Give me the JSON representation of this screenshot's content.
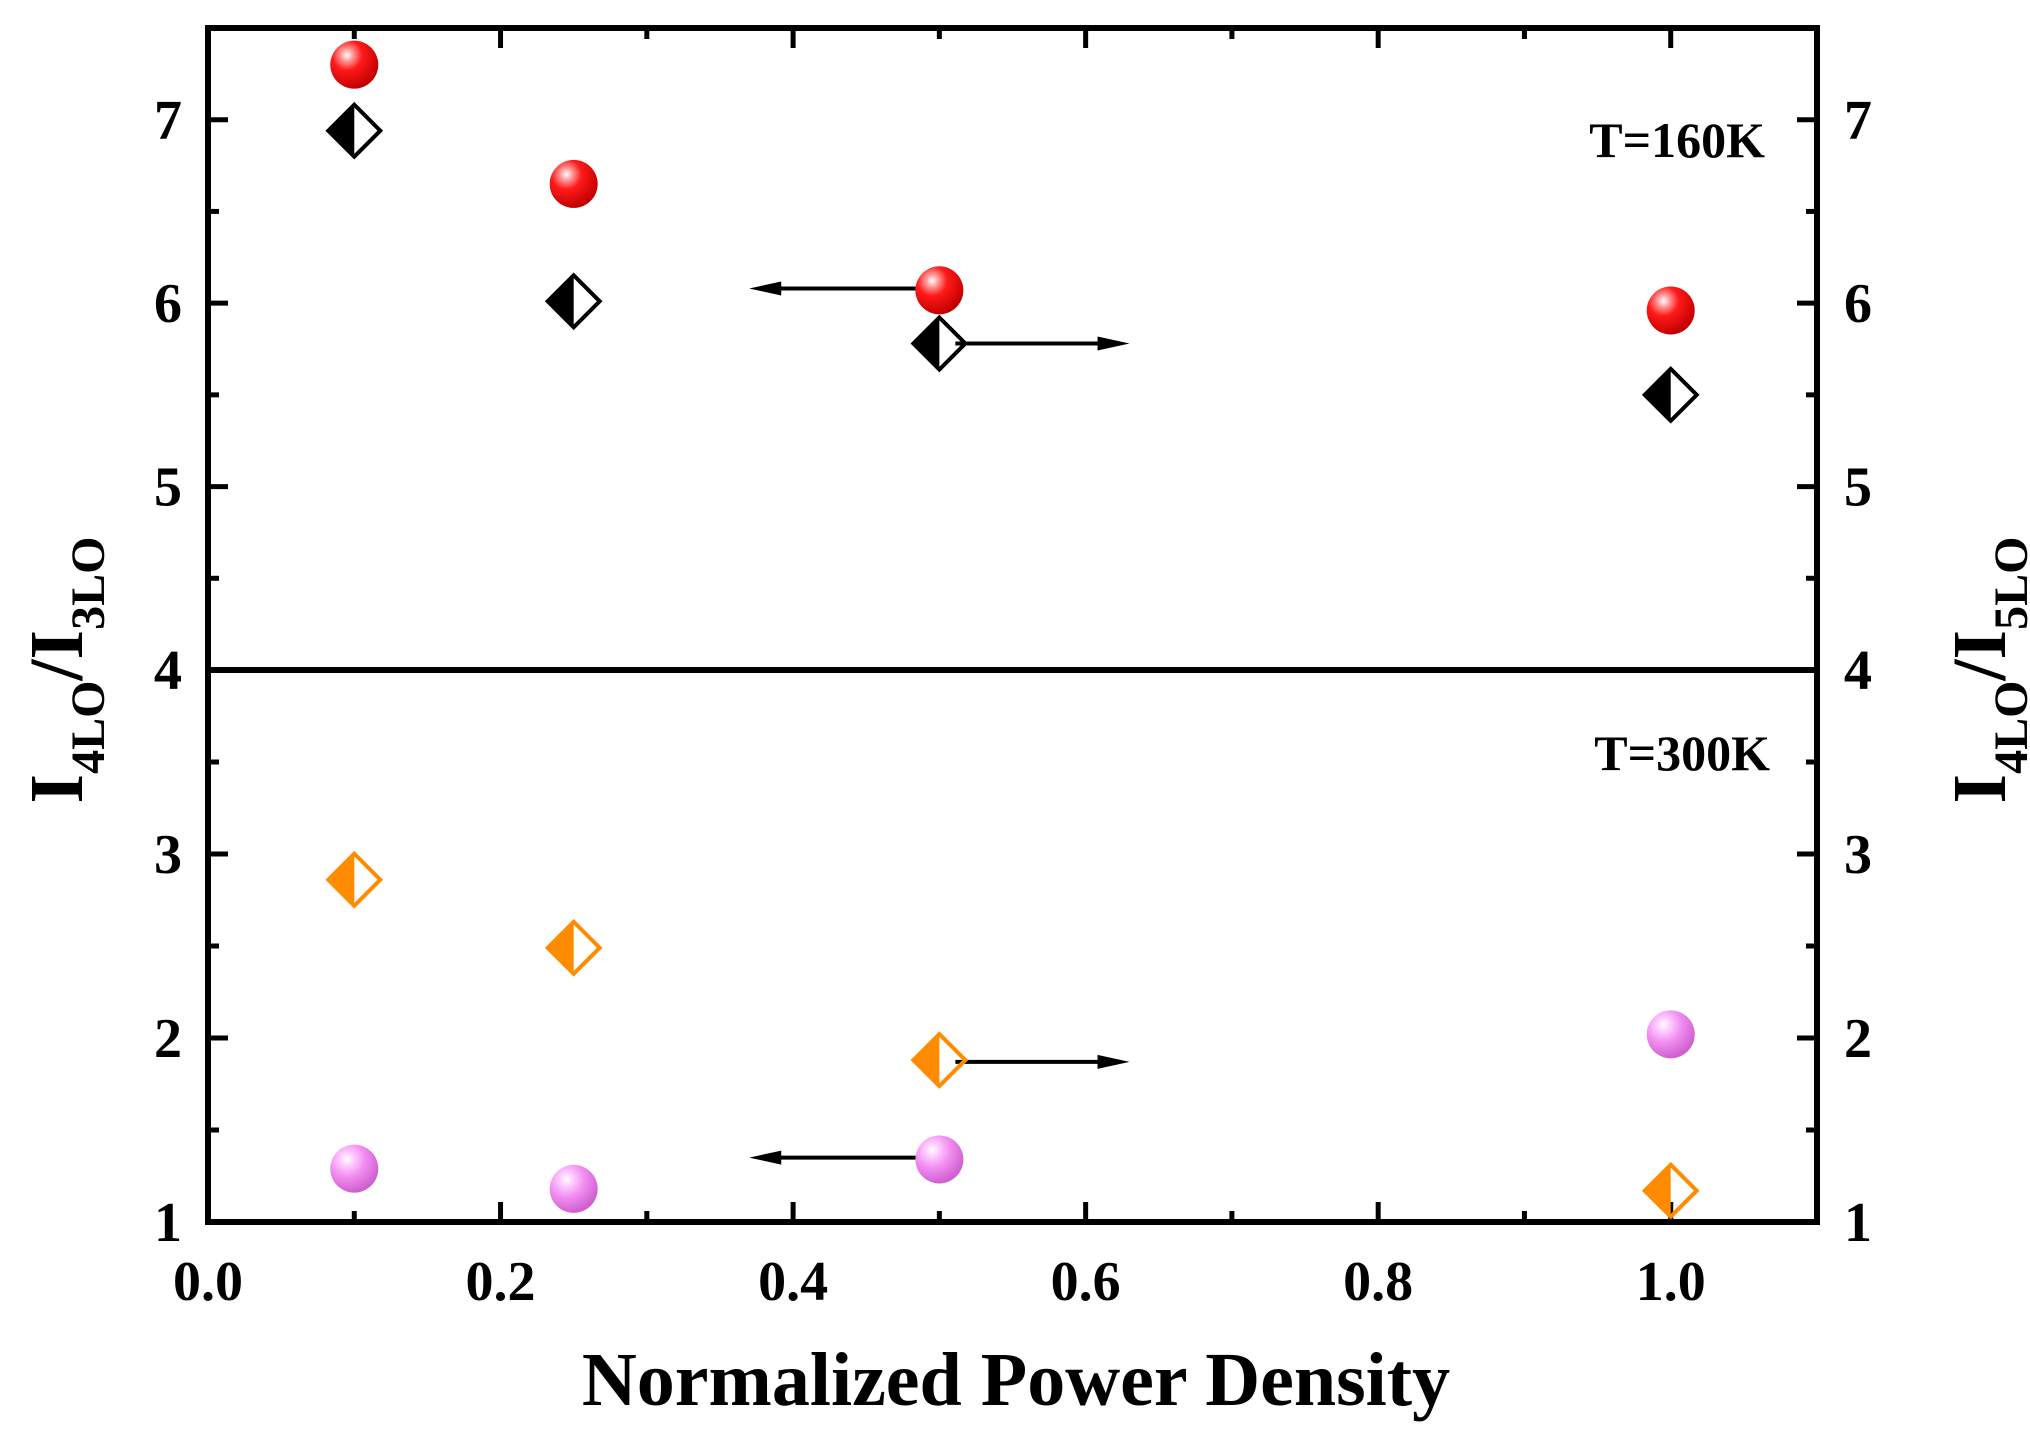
{
  "chart_data": {
    "type": "scatter",
    "xlabel": "Normalized Power Density",
    "ylabel_left": {
      "main": "I",
      "sub1": "4LO",
      "slash": "/I",
      "sub2": "3LO"
    },
    "ylabel_right": {
      "main": "I",
      "sub1": "4LO",
      "slash": "/I",
      "sub2": "5LO"
    },
    "xlim": [
      0.0,
      1.1
    ],
    "x_ticks": [
      "0.0",
      "0.2",
      "0.4",
      "0.6",
      "0.8",
      "1.0"
    ],
    "panels": [
      {
        "label": "T=160K",
        "ylim": [
          4,
          7.5
        ],
        "y_ticks": [
          "4",
          "5",
          "6",
          "7"
        ],
        "series": [
          {
            "axis": "left",
            "marker": "sphere",
            "color": "#e8000b",
            "x": [
              0.1,
              0.25,
              0.5,
              1.0
            ],
            "y": [
              7.3,
              6.65,
              6.07,
              5.96
            ]
          },
          {
            "axis": "right",
            "marker": "half-diamond",
            "color": "#000000",
            "x": [
              0.1,
              0.25,
              0.5,
              1.0
            ],
            "y": [
              6.94,
              6.01,
              5.78,
              5.5
            ]
          }
        ],
        "arrows": [
          {
            "direction": "left",
            "from_x": 0.5,
            "to_x": 0.37,
            "y": 6.08
          },
          {
            "direction": "right",
            "from_x": 0.5,
            "to_x": 0.63,
            "y": 5.78
          }
        ]
      },
      {
        "label": "T=300K",
        "ylim": [
          1,
          4
        ],
        "y_ticks": [
          "1",
          "2",
          "3",
          "4"
        ],
        "series": [
          {
            "axis": "left",
            "marker": "sphere",
            "color": "#ee82ee",
            "x": [
              0.1,
              0.25,
              0.5,
              1.0
            ],
            "y": [
              1.29,
              1.18,
              1.34,
              2.02
            ]
          },
          {
            "axis": "right",
            "marker": "half-diamond",
            "color": "#ff8c00",
            "x": [
              0.1,
              0.25,
              0.5,
              1.0
            ],
            "y": [
              2.86,
              2.49,
              1.88,
              1.17
            ]
          }
        ],
        "arrows": [
          {
            "direction": "left",
            "from_x": 0.5,
            "to_x": 0.37,
            "y": 1.35
          },
          {
            "direction": "right",
            "from_x": 0.5,
            "to_x": 0.63,
            "y": 1.87
          }
        ]
      }
    ]
  }
}
